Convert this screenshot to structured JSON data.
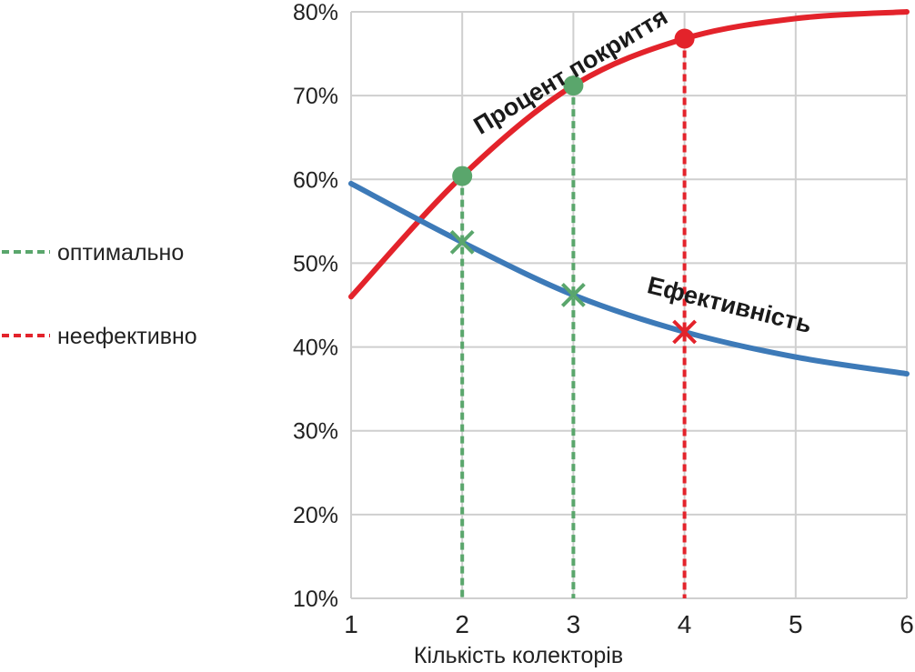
{
  "chart_data": {
    "type": "line",
    "xlabel": "Кількість колекторів",
    "ylabel": "",
    "x": [
      1,
      2,
      3,
      4,
      5,
      6
    ],
    "xlim": [
      1,
      6
    ],
    "ylim": [
      10,
      80
    ],
    "x_ticks": [
      "1",
      "2",
      "3",
      "4",
      "5",
      "6"
    ],
    "y_ticks": [
      {
        "value": 80,
        "label": "80%"
      },
      {
        "value": 70,
        "label": "70%"
      },
      {
        "value": 60,
        "label": "60%"
      },
      {
        "value": 50,
        "label": "50%"
      },
      {
        "value": 40,
        "label": "40%"
      },
      {
        "value": 30,
        "label": "30%"
      },
      {
        "value": 20,
        "label": "20%"
      },
      {
        "value": 10,
        "label": "10%"
      }
    ],
    "grid": true,
    "series": [
      {
        "name": "Процент покриття",
        "color": "#e3232b",
        "values": [
          46.0,
          60.4,
          71.2,
          76.8,
          79.2,
          80.0
        ]
      },
      {
        "name": "Ефективність",
        "color": "#3d7ab8",
        "values": [
          59.5,
          52.5,
          46.2,
          41.8,
          38.8,
          36.8
        ]
      }
    ],
    "markers": [
      {
        "x": 2,
        "status": "optimal"
      },
      {
        "x": 3,
        "status": "optimal"
      },
      {
        "x": 4,
        "status": "inefficient"
      }
    ],
    "legend": {
      "placement": "left",
      "items": [
        {
          "key": "optimal",
          "label": "оптимально",
          "color": "#5aa66c"
        },
        {
          "key": "inefficient",
          "label": "неефективно",
          "color": "#e3232b"
        }
      ]
    }
  }
}
